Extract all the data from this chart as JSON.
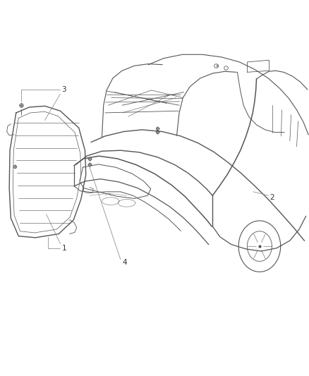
{
  "background_color": "#ffffff",
  "line_color": "#555555",
  "label_color": "#333333",
  "fig_width": 4.38,
  "fig_height": 5.33,
  "dpi": 100
}
